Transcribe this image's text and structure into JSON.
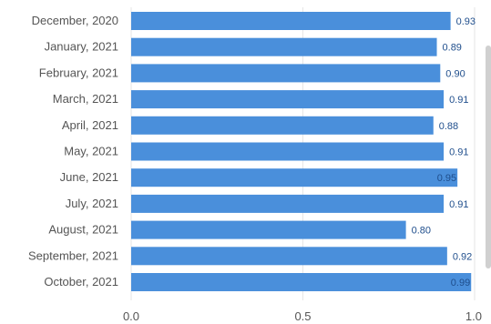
{
  "chart_data": {
    "type": "bar",
    "orientation": "horizontal",
    "categories": [
      "December, 2020",
      "January, 2021",
      "February, 2021",
      "March, 2021",
      "April, 2021",
      "May, 2021",
      "June, 2021",
      "July, 2021",
      "August, 2021",
      "September, 2021",
      "October, 2021"
    ],
    "values": [
      0.93,
      0.89,
      0.9,
      0.91,
      0.88,
      0.91,
      0.95,
      0.91,
      0.8,
      0.92,
      0.99
    ],
    "data_labels": [
      "0.93",
      "0.89",
      "0.90",
      "0.91",
      "0.88",
      "0.91",
      "0.95",
      "0.91",
      "0.80",
      "0.92",
      "0.99"
    ],
    "x_ticks": [
      "0.0",
      "0.5",
      "1.0"
    ],
    "xlim": [
      0,
      1
    ],
    "title": "",
    "xlabel": "",
    "ylabel": "",
    "grid": true,
    "bar_color": "#4a8fdb"
  }
}
